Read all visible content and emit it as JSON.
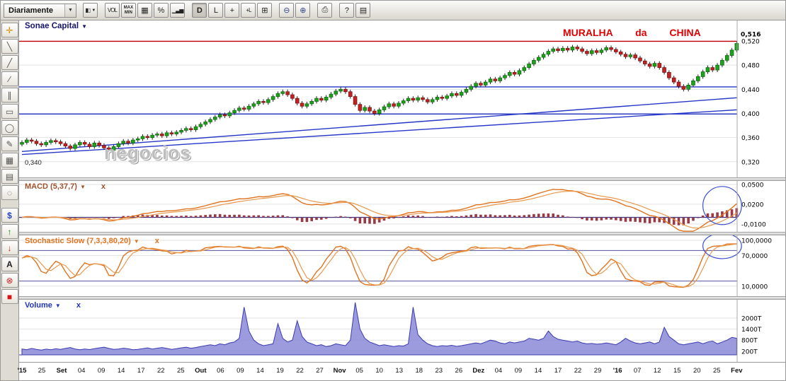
{
  "toolbar": {
    "period_value": "Diariamente",
    "caret": "▼",
    "buttons": [
      {
        "name": "chart-style",
        "glyph": "▮▯",
        "dropdown": true,
        "small": true
      },
      {
        "name": "volume-toggle",
        "label": "VOL",
        "gap_before": true,
        "small": true
      },
      {
        "name": "max-min",
        "label": "MAX MIN",
        "twoline": true
      },
      {
        "name": "grid",
        "glyph": "▦"
      },
      {
        "name": "percent",
        "label": "%"
      },
      {
        "name": "indicator-pane",
        "glyph": "▁▃▅",
        "small": true
      },
      {
        "name": "daily",
        "label": "D",
        "gap_before": true,
        "active": true
      },
      {
        "name": "log-scale",
        "label": "L"
      },
      {
        "name": "crosshair",
        "glyph": "+"
      },
      {
        "name": "crosshair-line",
        "glyph": "+L",
        "small": true
      },
      {
        "name": "add-study",
        "glyph": "⊞"
      },
      {
        "name": "zoom-out",
        "glyph": "⊖",
        "gap_before": true,
        "color": "#334488"
      },
      {
        "name": "zoom-in",
        "glyph": "⊕",
        "color": "#334488"
      },
      {
        "name": "print",
        "glyph": "⎙",
        "gap_before": true
      },
      {
        "name": "help",
        "label": "?",
        "gap_before": true
      },
      {
        "name": "manual",
        "glyph": "▤"
      }
    ]
  },
  "drawing_tools": [
    {
      "name": "pan",
      "glyph": "✛",
      "color": "#d68a00"
    },
    {
      "name": "line",
      "glyph": "╲",
      "color": "#555555"
    },
    {
      "name": "trend-line",
      "glyph": "╱",
      "color": "#555555"
    },
    {
      "name": "ray",
      "glyph": "∕",
      "color": "#555555"
    },
    {
      "name": "parallel-channel",
      "glyph": "∥",
      "color": "#555555"
    },
    {
      "name": "rectangle",
      "glyph": "▭",
      "color": "#555555"
    },
    {
      "name": "ellipse",
      "glyph": "◯",
      "color": "#555555"
    },
    {
      "name": "freehand",
      "glyph": "✎",
      "color": "#555555"
    },
    {
      "name": "fibonacci-grid",
      "glyph": "▦",
      "color": "#555555"
    },
    {
      "name": "horizontal-lines",
      "glyph": "▤",
      "color": "#555555"
    },
    {
      "name": "dotted-circle",
      "glyph": "◌",
      "color": "#555555"
    },
    {
      "name": "currency",
      "glyph": "$",
      "color": "#2244cc",
      "gap_before": true
    },
    {
      "name": "arrow-up",
      "glyph": "↑",
      "color": "#118811"
    },
    {
      "name": "arrow-down",
      "glyph": "↓",
      "color": "#cc2222"
    },
    {
      "name": "text",
      "glyph": "A",
      "color": "#222222"
    },
    {
      "name": "delete",
      "glyph": "⊗",
      "color": "#cc2222"
    },
    {
      "name": "color-swatch",
      "glyph": "■",
      "color": "#dd1111"
    }
  ],
  "panels": {
    "price": {
      "title": "Sonae Capital",
      "caret": "▼",
      "annotation": "MURALHA da CHINA",
      "watermark": "negocios",
      "left_label": "0,340"
    },
    "macd": {
      "title": "MACD (5,37,7)",
      "caret": "▼",
      "close": "x"
    },
    "stoch": {
      "title": "Stochastic Slow (7,3,3,80,20)",
      "caret": "▼",
      "close": "x"
    },
    "volume": {
      "title": "Volume",
      "caret": "▼",
      "close": "x"
    }
  },
  "chart_data": [
    {
      "type": "candlestick",
      "title": "Sonae Capital",
      "timeframe": "Diariamente",
      "ylim": [
        0.294,
        0.554
      ],
      "yticks": [
        {
          "v": 0.52,
          "label": "0,520"
        },
        {
          "v": 0.48,
          "label": "0,480"
        },
        {
          "v": 0.44,
          "label": "0,440"
        },
        {
          "v": 0.4,
          "label": "0,400"
        },
        {
          "v": 0.36,
          "label": "0,360"
        },
        {
          "v": 0.32,
          "label": "0,320"
        }
      ],
      "categories": [
        "'15",
        "25",
        "Set",
        "04",
        "09",
        "14",
        "17",
        "22",
        "25",
        "Out",
        "06",
        "09",
        "14",
        "19",
        "22",
        "27",
        "Nov",
        "05",
        "10",
        "13",
        "18",
        "23",
        "26",
        "Dez",
        "04",
        "09",
        "14",
        "17",
        "22",
        "29",
        "'16",
        "07",
        "12",
        "15",
        "20",
        "25",
        "Fev"
      ],
      "bold_ticks": [
        0,
        2,
        9,
        16,
        23,
        30,
        36
      ],
      "closes": [
        0.352,
        0.356,
        0.354,
        0.35,
        0.348,
        0.352,
        0.355,
        0.353,
        0.35,
        0.346,
        0.342,
        0.348,
        0.352,
        0.349,
        0.345,
        0.351,
        0.347,
        0.343,
        0.339,
        0.345,
        0.35,
        0.354,
        0.351,
        0.356,
        0.358,
        0.362,
        0.36,
        0.364,
        0.366,
        0.363,
        0.368,
        0.366,
        0.369,
        0.372,
        0.375,
        0.373,
        0.378,
        0.382,
        0.386,
        0.39,
        0.394,
        0.398,
        0.396,
        0.401,
        0.405,
        0.409,
        0.407,
        0.412,
        0.416,
        0.42,
        0.418,
        0.423,
        0.428,
        0.433,
        0.436,
        0.431,
        0.425,
        0.417,
        0.412,
        0.416,
        0.42,
        0.425,
        0.422,
        0.427,
        0.432,
        0.437,
        0.44,
        0.436,
        0.428,
        0.415,
        0.405,
        0.41,
        0.404,
        0.4,
        0.406,
        0.411,
        0.416,
        0.412,
        0.417,
        0.421,
        0.425,
        0.422,
        0.426,
        0.423,
        0.419,
        0.423,
        0.427,
        0.425,
        0.429,
        0.433,
        0.43,
        0.435,
        0.44,
        0.445,
        0.45,
        0.447,
        0.452,
        0.457,
        0.454,
        0.459,
        0.463,
        0.468,
        0.465,
        0.471,
        0.476,
        0.482,
        0.488,
        0.493,
        0.498,
        0.503,
        0.507,
        0.504,
        0.508,
        0.505,
        0.51,
        0.507,
        0.503,
        0.499,
        0.504,
        0.501,
        0.505,
        0.509,
        0.506,
        0.502,
        0.498,
        0.494,
        0.497,
        0.492,
        0.487,
        0.482,
        0.478,
        0.483,
        0.476,
        0.468,
        0.459,
        0.452,
        0.445,
        0.44,
        0.447,
        0.454,
        0.461,
        0.469,
        0.476,
        0.472,
        0.48,
        0.488,
        0.496,
        0.505,
        0.516
      ],
      "last_price": 0.516,
      "last_price_label": "0,516",
      "levels": {
        "resistance_red": 0.5195,
        "support_blue": [
          0.444,
          0.399
        ]
      },
      "trendlines": [
        {
          "i1": 0,
          "v1": 0.337,
          "i2": 148,
          "v2": 0.426
        },
        {
          "i1": 0,
          "v1": 0.332,
          "i2": 148,
          "v2": 0.406
        }
      ],
      "annotation": "MURALHA da CHINA"
    },
    {
      "type": "macd",
      "params": [
        5,
        37,
        7
      ],
      "derived_from": "price_closes",
      "ylim": [
        -0.022,
        0.0554
      ],
      "yticks": [
        {
          "v": 0.05,
          "label": "0,0500"
        },
        {
          "v": 0.02,
          "label": "0,0200"
        },
        {
          "v": -0.01,
          "label": "-0,0100"
        }
      ],
      "colors": {
        "macd_line": "#e0731f",
        "signal_line": "#e89a4f",
        "histogram": "#993a44",
        "zero_line": "#333388"
      },
      "highlight_ellipse": {
        "i": 145,
        "v": 0.018,
        "ri": 4,
        "rv": 0.029
      }
    },
    {
      "type": "stochastic_slow",
      "params": [
        7,
        3,
        3,
        80,
        20
      ],
      "derived_from": "price_closes",
      "bands": [
        80,
        20
      ],
      "ylim": [
        -9.7,
        109.7
      ],
      "yticks": [
        {
          "v": 100,
          "label": "100,0000"
        },
        {
          "v": 70,
          "label": "70,0000"
        },
        {
          "v": 10,
          "label": "10,0000"
        }
      ],
      "colors": {
        "k_line": "#e0731f",
        "d_line": "#e89a4f",
        "band_line": "#555599"
      },
      "highlight_ellipse": {
        "i": 145,
        "v": 89,
        "ri": 4,
        "rv": 25
      }
    },
    {
      "type": "area",
      "title": "Volume",
      "unit": "T",
      "ylim": [
        0,
        3000
      ],
      "yticks": [
        {
          "v": 2000,
          "label": "2000T"
        },
        {
          "v": 1400,
          "label": "1400T"
        },
        {
          "v": 800,
          "label": "800T"
        },
        {
          "v": 200,
          "label": "200T"
        }
      ],
      "colors": {
        "fill": "#8a8ad8",
        "line": "#3b3bb0"
      },
      "values": [
        320,
        280,
        350,
        300,
        260,
        310,
        280,
        330,
        300,
        350,
        400,
        320,
        280,
        320,
        290,
        340,
        380,
        420,
        350,
        300,
        320,
        360,
        330,
        280,
        300,
        340,
        380,
        320,
        360,
        400,
        350,
        300,
        340,
        380,
        420,
        360,
        400,
        450,
        500,
        550,
        500,
        600,
        550,
        650,
        700,
        900,
        2600,
        1300,
        800,
        600,
        500,
        550,
        600,
        1700,
        900,
        700,
        800,
        1850,
        1000,
        700,
        600,
        500,
        550,
        450,
        500,
        600,
        550,
        500,
        800,
        2850,
        1400,
        900,
        700,
        600,
        500,
        550,
        500,
        450,
        500,
        480,
        600,
        2600,
        1100,
        800,
        600,
        500,
        450,
        500,
        480,
        520,
        460,
        500,
        550,
        600,
        650,
        600,
        700,
        800,
        750,
        650,
        600,
        700,
        650,
        700,
        750,
        900,
        850,
        800,
        900,
        1300,
        1000,
        850,
        800,
        750,
        700,
        750,
        650,
        600,
        620,
        580,
        600,
        650,
        600,
        550,
        700,
        900,
        750,
        650,
        600,
        650,
        700,
        600,
        700,
        1500,
        1000,
        800,
        600,
        550,
        600,
        650,
        700,
        600,
        700,
        750,
        600,
        700,
        800,
        950,
        900
      ]
    }
  ]
}
